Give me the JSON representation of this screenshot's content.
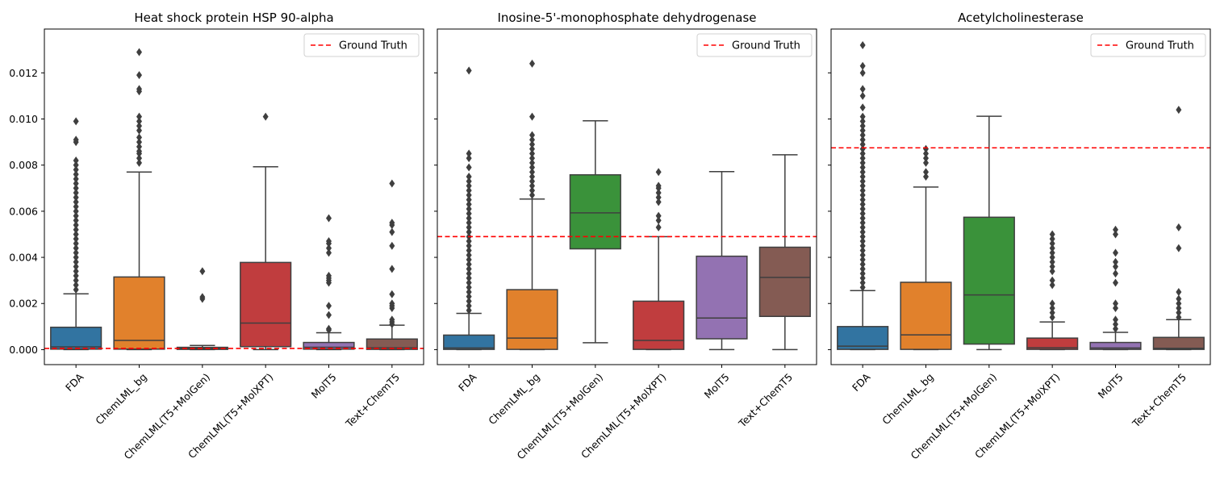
{
  "chart_data": [
    {
      "type": "box",
      "title": "Heat shock protein HSP 90-alpha",
      "ylim": [
        -0.00065,
        0.0139
      ],
      "yticks": [
        "0.000",
        "0.002",
        "0.004",
        "0.006",
        "0.008",
        "0.010",
        "0.012"
      ],
      "yticks_values": [
        0,
        0.002,
        0.004,
        0.006,
        0.008,
        0.01,
        0.012
      ],
      "ground_truth": 5e-05,
      "legend": "Ground Truth",
      "categories": [
        "FDA",
        "ChemLML_bg",
        "ChemLML(T5+MolGen)",
        "ChemLML(T5+MolXPT)",
        "MolT5",
        "Text+ChemT5"
      ],
      "boxes": [
        {
          "whislo": 0,
          "q1": 2e-05,
          "med": 0.00012,
          "q3": 0.00097,
          "whishi": 0.00242,
          "fliers": [
            0.0026,
            0.0028,
            0.003,
            0.0032,
            0.0034,
            0.0036,
            0.0038,
            0.004,
            0.0042,
            0.0044,
            0.0046,
            0.0048,
            0.005,
            0.0052,
            0.0054,
            0.0056,
            0.0058,
            0.006,
            0.0062,
            0.0064,
            0.0066,
            0.0068,
            0.007,
            0.0072,
            0.0074,
            0.0076,
            0.0078,
            0.008,
            0.0082,
            0.009,
            0.0091,
            0.0099
          ]
        },
        {
          "whislo": 0,
          "q1": 2e-05,
          "med": 0.0004,
          "q3": 0.00315,
          "whishi": 0.0077,
          "fliers": [
            0.0081,
            0.0083,
            0.0085,
            0.0086,
            0.0088,
            0.009,
            0.0092,
            0.0095,
            0.0097,
            0.0099,
            0.0101,
            0.0112,
            0.0113,
            0.0119,
            0.0129
          ]
        },
        {
          "whislo": 0,
          "q1": 1e-05,
          "med": 5e-05,
          "q3": 0.0001,
          "whishi": 0.00018,
          "fliers": [
            0.0022,
            0.00228,
            0.0034
          ]
        },
        {
          "whislo": 0,
          "q1": 0.00013,
          "med": 0.00115,
          "q3": 0.00378,
          "whishi": 0.00793,
          "fliers": [
            0.0101
          ]
        },
        {
          "whislo": 0,
          "q1": 2e-05,
          "med": 0.0001,
          "q3": 0.00031,
          "whishi": 0.00073,
          "fliers": [
            0.00085,
            0.0009,
            0.0015,
            0.0019,
            0.0029,
            0.003,
            0.0031,
            0.0032,
            0.0042,
            0.0044,
            0.0046,
            0.0047,
            0.0057
          ]
        },
        {
          "whislo": 0,
          "q1": 1e-05,
          "med": 8e-05,
          "q3": 0.00046,
          "whishi": 0.00106,
          "fliers": [
            0.0011,
            0.0012,
            0.0013,
            0.0018,
            0.0019,
            0.002,
            0.0024,
            0.0035,
            0.0045,
            0.0051,
            0.0054,
            0.0055,
            0.0072
          ]
        }
      ]
    },
    {
      "type": "box",
      "title": "Inosine-5'-monophosphate dehydrogenase",
      "ylim": [
        -0.00065,
        0.0139
      ],
      "ground_truth": 0.0049,
      "legend": "Ground Truth",
      "categories": [
        "FDA",
        "ChemLML_bg",
        "ChemLML(T5+MolGen)",
        "ChemLML(T5+MolXPT)",
        "MolT5",
        "Text+ChemT5"
      ],
      "boxes": [
        {
          "whislo": 0,
          "q1": 1e-05,
          "med": 7e-05,
          "q3": 0.00063,
          "whishi": 0.00157,
          "fliers": [
            0.0017,
            0.0019,
            0.0021,
            0.0023,
            0.0025,
            0.0027,
            0.0029,
            0.0031,
            0.0033,
            0.0035,
            0.0037,
            0.0039,
            0.0041,
            0.0043,
            0.0045,
            0.0047,
            0.0049,
            0.0051,
            0.0053,
            0.0055,
            0.0057,
            0.0059,
            0.0061,
            0.0063,
            0.0065,
            0.0067,
            0.0069,
            0.0071,
            0.0073,
            0.0075,
            0.0079,
            0.0083,
            0.0085,
            0.0121
          ]
        },
        {
          "whislo": 0,
          "q1": 1e-05,
          "med": 0.0005,
          "q3": 0.0026,
          "whishi": 0.00653,
          "fliers": [
            0.0067,
            0.0069,
            0.0071,
            0.0073,
            0.0075,
            0.0077,
            0.0079,
            0.0081,
            0.0083,
            0.0085,
            0.0087,
            0.0089,
            0.0091,
            0.0093,
            0.0101,
            0.0124
          ]
        },
        {
          "whislo": 0.0003,
          "q1": 0.00437,
          "med": 0.00593,
          "q3": 0.00758,
          "whishi": 0.00992,
          "fliers": []
        },
        {
          "whislo": 0,
          "q1": 1e-05,
          "med": 0.0004,
          "q3": 0.0021,
          "whishi": 0.0049,
          "fliers": [
            0.0053,
            0.0056,
            0.0058,
            0.0064,
            0.0066,
            0.0068,
            0.007,
            0.0071,
            0.0077
          ]
        },
        {
          "whislo": 0,
          "q1": 0.00047,
          "med": 0.00137,
          "q3": 0.00405,
          "whishi": 0.00772,
          "fliers": []
        },
        {
          "whislo": 0,
          "q1": 0.00144,
          "med": 0.00313,
          "q3": 0.00444,
          "whishi": 0.00845,
          "fliers": []
        }
      ]
    },
    {
      "type": "box",
      "title": "Acetylcholinesterase",
      "ylim": [
        -0.00065,
        0.0139
      ],
      "ground_truth": 0.00875,
      "legend": "Ground Truth",
      "categories": [
        "FDA",
        "ChemLML_bg",
        "ChemLML(T5+MolGen)",
        "ChemLML(T5+MolXPT)",
        "MolT5",
        "Text+ChemT5"
      ],
      "boxes": [
        {
          "whislo": 0,
          "q1": 1e-05,
          "med": 0.00015,
          "q3": 0.001,
          "whishi": 0.00256,
          "fliers": [
            0.0027,
            0.0029,
            0.0031,
            0.0033,
            0.0035,
            0.0037,
            0.0039,
            0.0041,
            0.0043,
            0.0045,
            0.0047,
            0.0049,
            0.0051,
            0.0053,
            0.0055,
            0.0057,
            0.0059,
            0.0061,
            0.0063,
            0.0065,
            0.0067,
            0.0069,
            0.0071,
            0.0073,
            0.0075,
            0.0077,
            0.0079,
            0.0081,
            0.0083,
            0.0085,
            0.0087,
            0.0089,
            0.0091,
            0.0093,
            0.0095,
            0.0097,
            0.0099,
            0.0101,
            0.0105,
            0.011,
            0.0113,
            0.012,
            0.0123,
            0.0132
          ]
        },
        {
          "whislo": 0,
          "q1": 1e-05,
          "med": 0.00064,
          "q3": 0.00292,
          "whishi": 0.00705,
          "fliers": [
            0.0075,
            0.0077,
            0.0081,
            0.0083,
            0.0085,
            0.0087
          ]
        },
        {
          "whislo": 0,
          "q1": 0.00024,
          "med": 0.00237,
          "q3": 0.00574,
          "whishi": 0.01012,
          "fliers": []
        },
        {
          "whislo": 0,
          "q1": 1e-05,
          "med": 8e-05,
          "q3": 0.0005,
          "whishi": 0.0012,
          "fliers": [
            0.0014,
            0.0016,
            0.0018,
            0.002,
            0.0028,
            0.003,
            0.0034,
            0.0036,
            0.0038,
            0.004,
            0.0042,
            0.0044,
            0.0046,
            0.0048,
            0.005
          ]
        },
        {
          "whislo": 0,
          "q1": 1e-05,
          "med": 7e-05,
          "q3": 0.00031,
          "whishi": 0.00075,
          "fliers": [
            0.0009,
            0.0011,
            0.0013,
            0.0018,
            0.002,
            0.0029,
            0.0033,
            0.0036,
            0.0038,
            0.0042,
            0.005,
            0.0052
          ]
        },
        {
          "whislo": 0,
          "q1": 1e-05,
          "med": 6e-05,
          "q3": 0.00053,
          "whishi": 0.0013,
          "fliers": [
            0.0014,
            0.0016,
            0.0018,
            0.002,
            0.0022,
            0.0025,
            0.0044,
            0.0053,
            0.0104
          ]
        }
      ]
    }
  ],
  "colors": [
    "#3274a1",
    "#e1812c",
    "#3a923a",
    "#c03d3e",
    "#9372b2",
    "#845b53"
  ],
  "ground_truth_color": "#ff0000",
  "line_color": "#3f3f3f"
}
